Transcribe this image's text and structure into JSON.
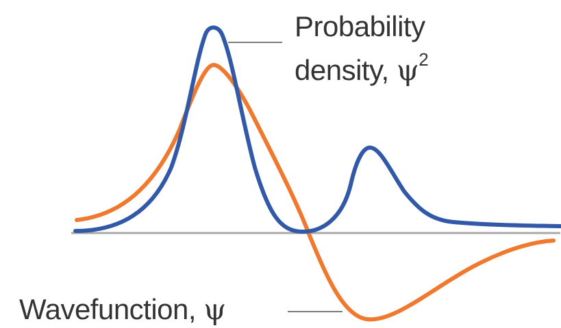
{
  "colors": {
    "probability_density": "#3259a7",
    "wavefunction": "#ef7a2f",
    "baseline": "#a9a9a9",
    "leader_line": "#7a7a7a",
    "text": "#333333"
  },
  "labels": {
    "probability_density_line1": "Probability",
    "probability_density_line2": "density,",
    "probability_density_symbol": "ψ",
    "probability_density_exponent": "2",
    "wavefunction_text": "Wavefunction,",
    "wavefunction_symbol": "ψ"
  }
}
